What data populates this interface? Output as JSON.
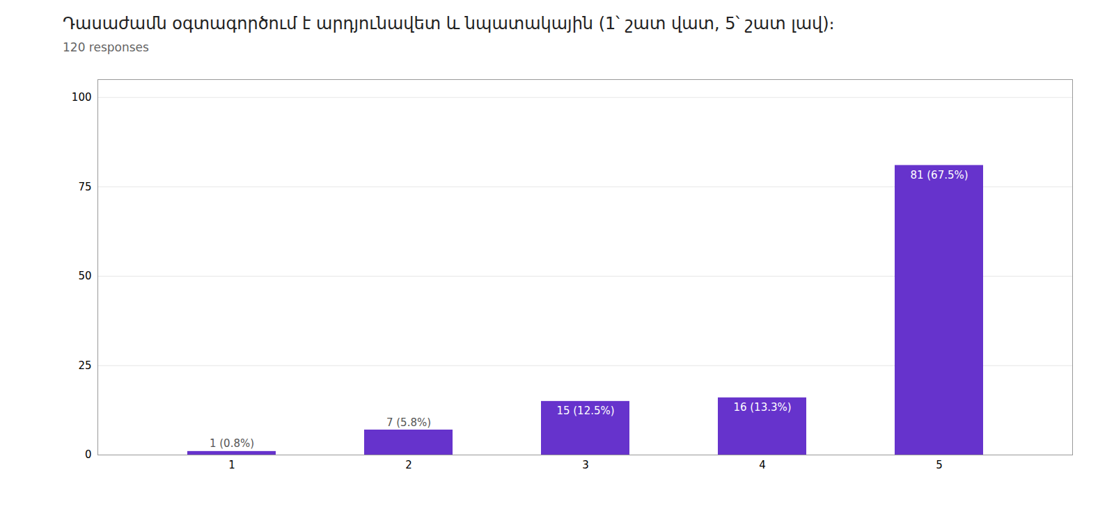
{
  "chart_data": {
    "type": "bar",
    "title": "Դասաժամն օգտագործում է արդյունավետ և նպատակային (1՝ շատ վատ, 5՝ շատ լավ)։",
    "subtitle": "120 responses",
    "categories": [
      "1",
      "2",
      "3",
      "4",
      "5"
    ],
    "values": [
      1,
      7,
      15,
      16,
      81
    ],
    "value_labels": [
      "1 (0.8%)",
      "7 (5.8%)",
      "15 (12.5%)",
      "16 (13.3%)",
      "81 (67.5%)"
    ],
    "color": "#6633cc",
    "ylim": [
      0,
      105
    ],
    "yticks": [
      0,
      25,
      50,
      75,
      100
    ],
    "grid": true,
    "data_labels": true
  }
}
